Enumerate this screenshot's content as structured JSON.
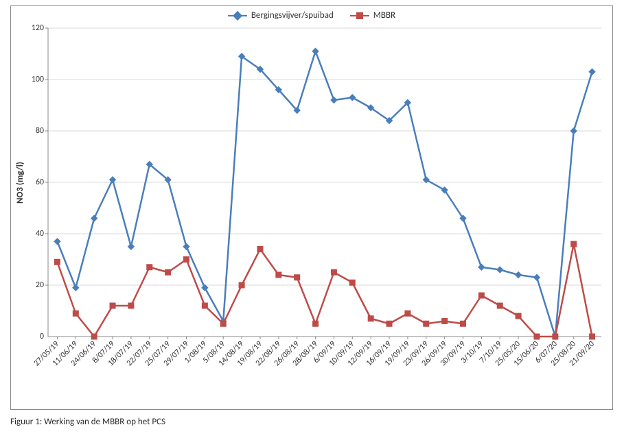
{
  "no3_chart": {
    "type": "line",
    "title": null,
    "ylabel": "NO3 (mg/l)",
    "label_fontsize": 13,
    "background_color": "#ffffff",
    "grid_color": "#d9d9d9",
    "axis_color": "#888888",
    "frame_color": "#888888",
    "tick_fontsize": 12,
    "ylim": [
      0,
      120
    ],
    "ytick_step": 20,
    "x_categories": [
      "27/05/19",
      "11/06/19",
      "24/06/19",
      "8/07/19",
      "18/07/19",
      "22/07/19",
      "25/07/19",
      "29/07/19",
      "1/08/19",
      "5/08/19",
      "14/08/19",
      "19/08/19",
      "22/08/19",
      "26/08/19",
      "28/08/19",
      "6/09/19",
      "10/09/19",
      "12/09/19",
      "16/09/19",
      "19/09/19",
      "23/09/19",
      "26/09/19",
      "30/09/19",
      "3/10/19",
      "7/10/19",
      "25/05/20",
      "15/06/20",
      "6/07/20",
      "25/08/20",
      "21/09/20"
    ],
    "xtick_rotation": -45,
    "series": [
      {
        "name": "Bergingsvijver/spuibad",
        "color": "#4a7ebb",
        "line_width": 2.5,
        "marker": "diamond",
        "marker_size": 9,
        "values": [
          37,
          19,
          46,
          61,
          35,
          67,
          61,
          35,
          19,
          6,
          109,
          104,
          96,
          88,
          111,
          92,
          93,
          89,
          84,
          91,
          61,
          57,
          46,
          27,
          26,
          24,
          23,
          0,
          80,
          103
        ]
      },
      {
        "name": "MBBR",
        "color": "#be4b48",
        "line_width": 2.5,
        "marker": "square",
        "marker_size": 8,
        "values": [
          29,
          9,
          0,
          12,
          12,
          27,
          25,
          30,
          12,
          5,
          20,
          34,
          24,
          23,
          5,
          25,
          21,
          7,
          5,
          9,
          5,
          6,
          5,
          16,
          12,
          8,
          0,
          0,
          36,
          0
        ]
      }
    ],
    "legend_position": "top-center"
  },
  "caption": "Figuur 1: Werking van de MBBR op het PCS"
}
